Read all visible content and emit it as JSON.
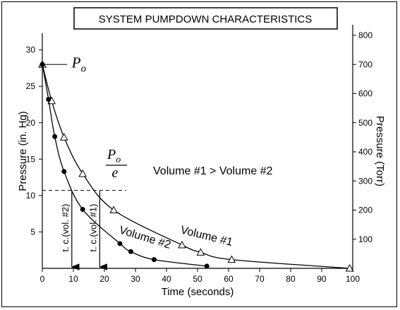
{
  "chart_data": {
    "type": "line",
    "title": "SYSTEM PUMPDOWN CHARACTERISTICS",
    "xlabel": "Time (seconds)",
    "ylabel_left": "Pressure (in. Hg)",
    "ylabel_right": "Pressure (Torr)",
    "xlim": [
      0,
      100
    ],
    "ylim_left": [
      0,
      32
    ],
    "ylim_right": [
      0,
      800
    ],
    "x_ticks": [
      0,
      10,
      20,
      30,
      40,
      50,
      60,
      70,
      80,
      90,
      100
    ],
    "y_left_ticks": [
      5,
      10,
      15,
      20,
      25,
      30
    ],
    "y_right_ticks": [
      100,
      200,
      300,
      400,
      500,
      600,
      700,
      800
    ],
    "series": [
      {
        "name": "Volume #1",
        "marker": "triangle",
        "x": [
          0,
          3,
          7,
          13,
          23,
          45,
          51,
          61,
          99
        ],
        "y": [
          28,
          23,
          18,
          13,
          8,
          3.2,
          2.2,
          1.2,
          0
        ]
      },
      {
        "name": "Volume #2",
        "marker": "circle",
        "x": [
          0,
          2,
          4,
          7,
          13,
          25,
          28.5,
          36,
          53
        ],
        "y": [
          28,
          23.2,
          18.1,
          13.3,
          8.1,
          3.4,
          2.3,
          1.2,
          0.3
        ]
      }
    ],
    "annotations": {
      "p0_label": "P",
      "p0_sub": "o",
      "pe_num": "P",
      "pe_sub": "o",
      "pe_den": "e",
      "relation": "Volume #1 > Volume #2",
      "tc_vol2": "t. c.(vol. #2)",
      "tc_vol1": "t. c.(vol. #1)",
      "tc_vol2_x": 9.5,
      "tc_vol1_x": 18.5,
      "pe_level": 10.7
    }
  }
}
